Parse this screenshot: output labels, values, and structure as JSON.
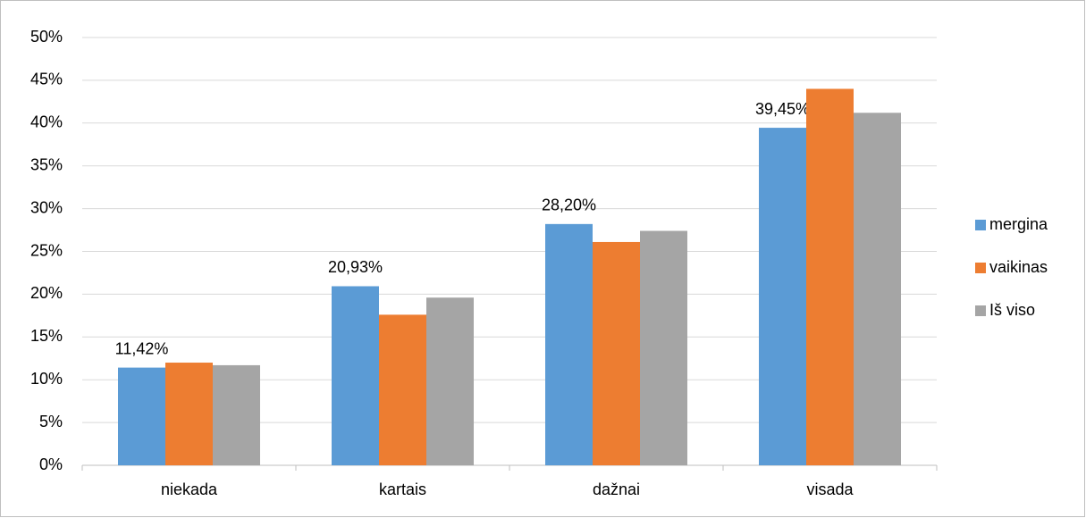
{
  "chart_data": {
    "type": "bar",
    "categories": [
      "niekada",
      "kartais",
      "dažnai",
      "visada"
    ],
    "series": [
      {
        "name": "mergina",
        "color": "#5b9bd5",
        "values": [
          11.42,
          20.93,
          28.2,
          39.45
        ],
        "value_labels": [
          "11,42%",
          "20,93%",
          "28,20%",
          "39,45%"
        ]
      },
      {
        "name": "vaikinas",
        "color": "#ed7d31",
        "values": [
          12.0,
          17.6,
          26.1,
          44.0
        ]
      },
      {
        "name": "Iš viso",
        "color": "#a5a5a5",
        "values": [
          11.7,
          19.6,
          27.4,
          41.2
        ]
      }
    ],
    "ylim": [
      0,
      50
    ],
    "yticks": [
      {
        "value": 0,
        "label": "0%"
      },
      {
        "value": 5,
        "label": "5%"
      },
      {
        "value": 10,
        "label": "10%"
      },
      {
        "value": 15,
        "label": "15%"
      },
      {
        "value": 20,
        "label": "20%"
      },
      {
        "value": 25,
        "label": "25%"
      },
      {
        "value": 30,
        "label": "30%"
      },
      {
        "value": 35,
        "label": "35%"
      },
      {
        "value": 40,
        "label": "40%"
      },
      {
        "value": 45,
        "label": "45%"
      },
      {
        "value": 50,
        "label": "50%"
      }
    ],
    "grid": true,
    "legend": "right"
  }
}
